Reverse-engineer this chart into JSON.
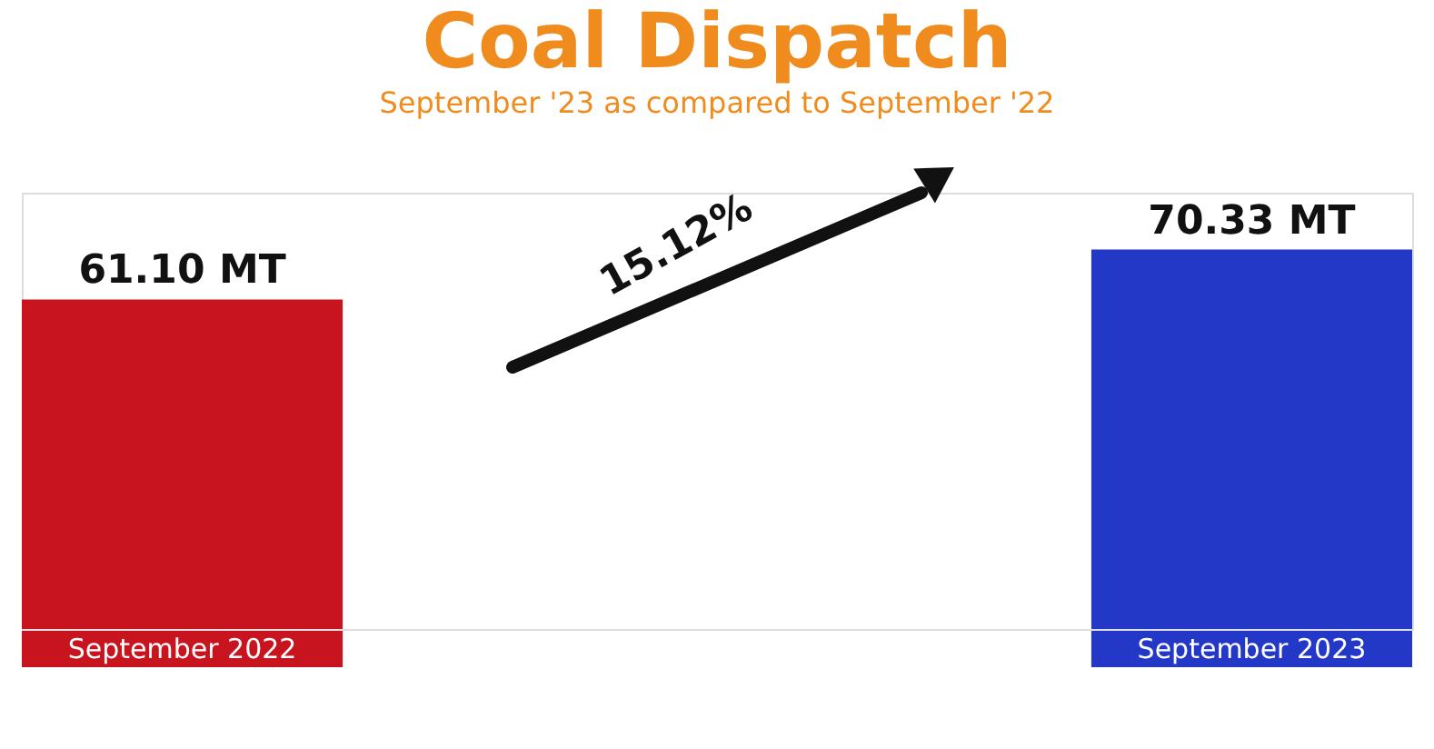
{
  "chart_data": {
    "type": "bar",
    "title": "Coal Dispatch",
    "subtitle": "September '23 as compared to September '22",
    "categories": [
      "September 2022",
      "September 2023"
    ],
    "values": [
      61.1,
      70.33
    ],
    "value_labels": [
      "61.10 MT",
      "70.33 MT"
    ],
    "colors": [
      "#c8141e",
      "#2438c8"
    ],
    "annotations": [
      "15.12%"
    ]
  }
}
